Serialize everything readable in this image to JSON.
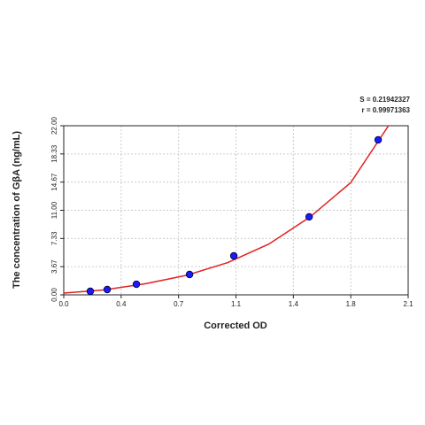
{
  "chart_data": {
    "type": "scatter",
    "xlabel": "Corrected OD",
    "ylabel": "The concentration of GβA (ng/mL)",
    "annotations": [
      "S = 0.21942327",
      "r = 0.99971363"
    ],
    "grid": true,
    "xlim": [
      0,
      2.1
    ],
    "ylim": [
      0,
      22
    ],
    "xticks": [
      {
        "value": 0,
        "label": "0.0"
      },
      {
        "value": 0.35,
        "label": "0.4"
      },
      {
        "value": 0.7,
        "label": "0.7"
      },
      {
        "value": 1.05,
        "label": "1.1"
      },
      {
        "value": 1.4,
        "label": "1.4"
      },
      {
        "value": 1.75,
        "label": "1.8"
      },
      {
        "value": 2.1,
        "label": "2.1"
      }
    ],
    "yticks": [
      {
        "value": 0,
        "label": "0.00"
      },
      {
        "value": 3.667,
        "label": "3.67"
      },
      {
        "value": 7.333,
        "label": "7.33"
      },
      {
        "value": 11,
        "label": "11.00"
      },
      {
        "value": 14.667,
        "label": "14.67"
      },
      {
        "value": 18.333,
        "label": "18.33"
      },
      {
        "value": 22,
        "label": "22.00"
      }
    ],
    "points": {
      "color": "#1a1aff",
      "x": [
        0.162,
        0.265,
        0.443,
        0.767,
        1.037,
        1.496,
        1.917
      ],
      "values": [
        0.46,
        0.69,
        1.38,
        2.65,
        5.07,
        10.14,
        20.16
      ]
    },
    "fit": {
      "color": "#e02020",
      "x": [
        0,
        0.25,
        0.5,
        0.75,
        1.0,
        1.25,
        1.5,
        1.75,
        1.98
      ],
      "values": [
        0.23,
        0.65,
        1.45,
        2.55,
        4.2,
        6.6,
        10.1,
        14.6,
        22
      ]
    }
  }
}
